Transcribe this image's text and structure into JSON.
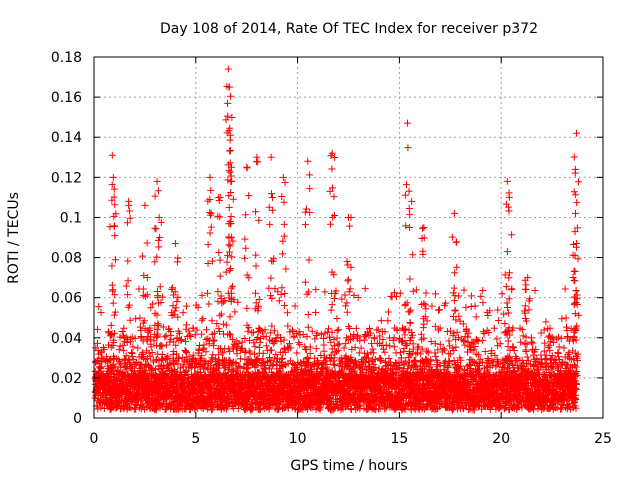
{
  "chart_data": {
    "type": "scatter",
    "title": "Day 108 of 2014, Rate Of TEC Index for receiver p372",
    "xlabel": "GPS time / hours",
    "ylabel": "ROTI / TECUs",
    "xlim": [
      0,
      25
    ],
    "ylim": [
      0,
      0.18
    ],
    "xticks": [
      "0",
      "5",
      "10",
      "15",
      "20",
      "25"
    ],
    "yticks": [
      "0",
      "0.02",
      "0.04",
      "0.06",
      "0.08",
      "0.1",
      "0.12",
      "0.14",
      "0.16",
      "0.18"
    ],
    "grid": true,
    "marker_color": "#ff0000",
    "marker": "plus",
    "x_data_range": [
      0.05,
      23.7
    ],
    "series": [
      {
        "peaks": [
          [
            0.9,
            0.131
          ],
          [
            0.95,
            0.12
          ],
          [
            1.7,
            0.108
          ],
          [
            2.5,
            0.106
          ],
          [
            3.1,
            0.118
          ],
          [
            3.2,
            0.1
          ],
          [
            4.0,
            0.087
          ],
          [
            5.7,
            0.12
          ],
          [
            6.2,
            0.11
          ],
          [
            6.6,
            0.174
          ],
          [
            6.65,
            0.165
          ],
          [
            6.7,
            0.141
          ],
          [
            6.75,
            0.125
          ],
          [
            7.5,
            0.125
          ],
          [
            8.0,
            0.13
          ],
          [
            8.7,
            0.13
          ],
          [
            9.3,
            0.12
          ],
          [
            10.5,
            0.128
          ],
          [
            11.7,
            0.132
          ],
          [
            12.5,
            0.1
          ],
          [
            15.4,
            0.147
          ],
          [
            15.6,
            0.108
          ],
          [
            16.2,
            0.095
          ],
          [
            17.7,
            0.102
          ],
          [
            20.3,
            0.118
          ],
          [
            20.4,
            0.11
          ],
          [
            21.3,
            0.07
          ],
          [
            23.7,
            0.142
          ],
          [
            23.65,
            0.102
          ],
          [
            23.7,
            0.087
          ]
        ]
      }
    ]
  }
}
